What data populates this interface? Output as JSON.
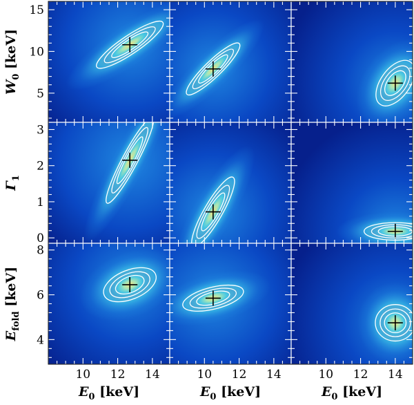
{
  "chart_data": {
    "type": "heatmap",
    "title": "",
    "description_of_content": "3x3 grid of confidence-contour maps: chi-square landscape (colormap) with 1/2/3-sigma contours and best-fit cross",
    "layout": {
      "rows": 3,
      "cols": 3,
      "shared_x": true,
      "shared_y_per_row": true
    },
    "colormap": [
      "#06208c",
      "#0a48c4",
      "#1f86df",
      "#3fc6e8",
      "#a6e6b8",
      "#eddf7e"
    ],
    "contour_color": "#ffffff",
    "marker_color": "#000000",
    "columns": [
      {
        "xlabel": "E0 [keV]",
        "xlim": [
          8,
          15
        ],
        "xticks": [
          10,
          12,
          14
        ],
        "xtick_labels": [
          "10",
          "12",
          "14"
        ]
      },
      {
        "xlabel": "E0 [keV]",
        "xlim": [
          8,
          15
        ],
        "xticks": [
          10,
          12,
          14
        ],
        "xtick_labels": [
          "10",
          "12",
          "14"
        ]
      },
      {
        "xlabel": "E0 [keV]",
        "xlim": [
          8,
          15
        ],
        "xticks": [
          10,
          12,
          14
        ],
        "xtick_labels": [
          "10",
          "12",
          "14"
        ]
      }
    ],
    "rows": [
      {
        "ylabel": "W0 [keV]",
        "ylim": [
          1.5,
          16
        ],
        "yticks": [
          5,
          10,
          15
        ],
        "ytick_labels": [
          "5",
          "10",
          "15"
        ]
      },
      {
        "ylabel": "Γ1",
        "ylim": [
          -0.15,
          3.2
        ],
        "yticks": [
          0,
          1,
          2,
          3
        ],
        "ytick_labels": [
          "0",
          "1",
          "2",
          "3"
        ]
      },
      {
        "ylabel": "Efold [keV]",
        "ylim": [
          2.9,
          8.3
        ],
        "yticks": [
          4,
          6,
          8
        ],
        "ytick_labels": [
          "4",
          "6",
          "8"
        ]
      }
    ],
    "panels": [
      {
        "row": 0,
        "col": 0,
        "best_fit": {
          "x": 12.7,
          "y": 10.8
        },
        "angle": -34,
        "sx": 2.3,
        "sy": 0.5,
        "extent": 1.3,
        "bg": 0.55
      },
      {
        "row": 0,
        "col": 1,
        "best_fit": {
          "x": 10.5,
          "y": 7.9
        },
        "angle": -44,
        "sx": 2.1,
        "sy": 0.45,
        "extent": 1.3,
        "bg": 0.5
      },
      {
        "row": 0,
        "col": 2,
        "best_fit": {
          "x": 14.0,
          "y": 6.2
        },
        "angle": -54,
        "sx": 1.5,
        "sy": 0.8,
        "extent": 1.3,
        "bg": 0.45
      },
      {
        "row": 1,
        "col": 0,
        "best_fit": {
          "x": 12.7,
          "y": 2.15
        },
        "angle": -62,
        "sx": 2.8,
        "sy": 0.42,
        "extent": 1.3,
        "bg": 0.6
      },
      {
        "row": 1,
        "col": 1,
        "best_fit": {
          "x": 10.5,
          "y": 0.72
        },
        "angle": -60,
        "sx": 2.3,
        "sy": 0.5,
        "extent": 1.3,
        "bg": 0.5
      },
      {
        "row": 1,
        "col": 2,
        "best_fit": {
          "x": 14.0,
          "y": 0.18
        },
        "angle": 0,
        "sx": 1.8,
        "sy": 0.48,
        "extent": 1.3,
        "bg": 0.45
      },
      {
        "row": 2,
        "col": 0,
        "best_fit": {
          "x": 12.7,
          "y": 6.45
        },
        "angle": -22,
        "sx": 1.6,
        "sy": 0.8,
        "extent": 1.3,
        "bg": 0.5
      },
      {
        "row": 2,
        "col": 1,
        "best_fit": {
          "x": 10.5,
          "y": 5.85
        },
        "angle": -14,
        "sx": 1.8,
        "sy": 0.6,
        "extent": 1.3,
        "bg": 0.55
      },
      {
        "row": 2,
        "col": 2,
        "best_fit": {
          "x": 14.0,
          "y": 4.75
        },
        "angle": 0,
        "sx": 1.15,
        "sy": 1.0,
        "extent": 1.3,
        "bg": 0.45
      }
    ]
  }
}
